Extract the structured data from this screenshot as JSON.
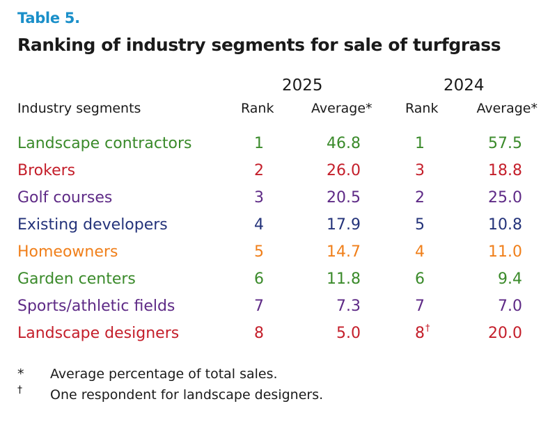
{
  "table": {
    "label": "Table 5.",
    "title": "Ranking of industry segments for sale of turfgrass",
    "years": [
      "2025",
      "2024"
    ],
    "column_headers": {
      "segment": "Industry segments",
      "rank_2025": "Rank",
      "avg_2025": "Average*",
      "rank_2024": "Rank",
      "avg_2024": "Average*"
    },
    "rows": [
      {
        "segment": "Landscape contractors",
        "rank_2025": "1",
        "avg_2025": "46.8",
        "rank_2024": "1",
        "rank_2024_mark": "",
        "avg_2024": "57.5",
        "color": "#3a8a2a"
      },
      {
        "segment": "Brokers",
        "rank_2025": "2",
        "avg_2025": "26.0",
        "rank_2024": "3",
        "rank_2024_mark": "",
        "avg_2024": "18.8",
        "color": "#c41e2a"
      },
      {
        "segment": "Golf courses",
        "rank_2025": "3",
        "avg_2025": "20.5",
        "rank_2024": "2",
        "rank_2024_mark": "",
        "avg_2024": "25.0",
        "color": "#5e2a86"
      },
      {
        "segment": "Existing developers",
        "rank_2025": "4",
        "avg_2025": "17.9",
        "rank_2024": "5",
        "rank_2024_mark": "",
        "avg_2024": "10.8",
        "color": "#24337a"
      },
      {
        "segment": "Homeowners",
        "rank_2025": "5",
        "avg_2025": "14.7",
        "rank_2024": "4",
        "rank_2024_mark": "",
        "avg_2024": "11.0",
        "color": "#f07f1a"
      },
      {
        "segment": "Garden centers",
        "rank_2025": "6",
        "avg_2025": "11.8",
        "rank_2024": "6",
        "rank_2024_mark": "",
        "avg_2024": "9.4",
        "color": "#3a8a2a"
      },
      {
        "segment": "Sports/athletic fields",
        "rank_2025": "7",
        "avg_2025": "7.3",
        "rank_2024": "7",
        "rank_2024_mark": "",
        "avg_2024": "7.0",
        "color": "#5e2a86"
      },
      {
        "segment": "Landscape designers",
        "rank_2025": "8",
        "avg_2025": "5.0",
        "rank_2024": "8",
        "rank_2024_mark": "†",
        "avg_2024": "20.0",
        "color": "#c41e2a"
      }
    ],
    "footnotes": [
      {
        "symbol": "*",
        "text": "Average percentage of total sales."
      },
      {
        "symbol": "†",
        "text": "One respondent for landscape designers."
      }
    ]
  },
  "colors": {
    "label_blue": "#1a8fc9",
    "text_dark": "#1a1a1a"
  }
}
